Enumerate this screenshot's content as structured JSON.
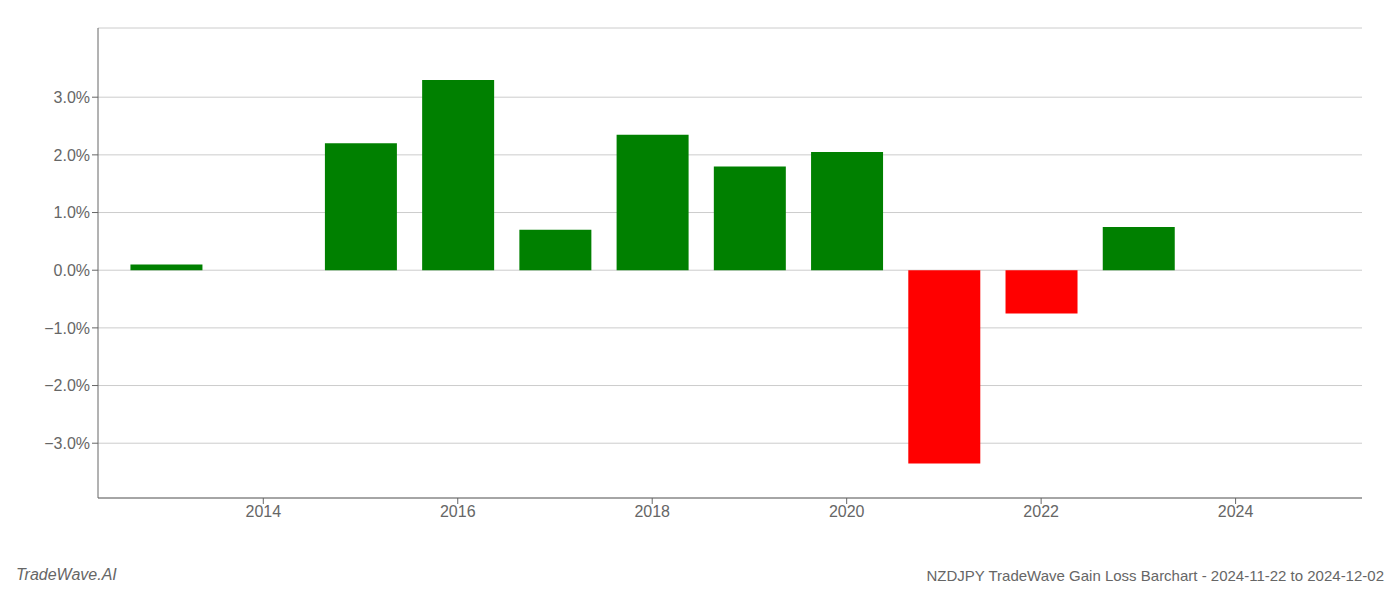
{
  "chart_data": {
    "type": "bar",
    "title": "NZDJPY TradeWave Gain Loss Barchart - 2024-11-22 to 2024-12-02",
    "annotations": [
      "TradeWave.AI"
    ],
    "x": [
      2013,
      2015,
      2016,
      2017,
      2018,
      2019,
      2020,
      2021,
      2022,
      2023
    ],
    "values": [
      0.001,
      0.022,
      0.033,
      0.007,
      0.0235,
      0.018,
      0.0205,
      -0.0335,
      -0.0075,
      0.0075
    ],
    "colors": [
      "#008000",
      "#008000",
      "#008000",
      "#008000",
      "#008000",
      "#008000",
      "#008000",
      "#ff0000",
      "#ff0000",
      "#008000"
    ],
    "xlim": [
      2012.3,
      2025.3
    ],
    "ylim": [
      -0.0395,
      0.042
    ],
    "xticks": [
      2014,
      2016,
      2018,
      2020,
      2022,
      2024
    ],
    "yticks": [
      {
        "value": -0.03,
        "label": "−3.0%"
      },
      {
        "value": -0.02,
        "label": "−2.0%"
      },
      {
        "value": -0.01,
        "label": "−1.0%"
      },
      {
        "value": 0.0,
        "label": "0.0%"
      },
      {
        "value": 0.01,
        "label": "1.0%"
      },
      {
        "value": 0.02,
        "label": "2.0%"
      },
      {
        "value": 0.03,
        "label": "3.0%"
      }
    ],
    "grid": true
  }
}
